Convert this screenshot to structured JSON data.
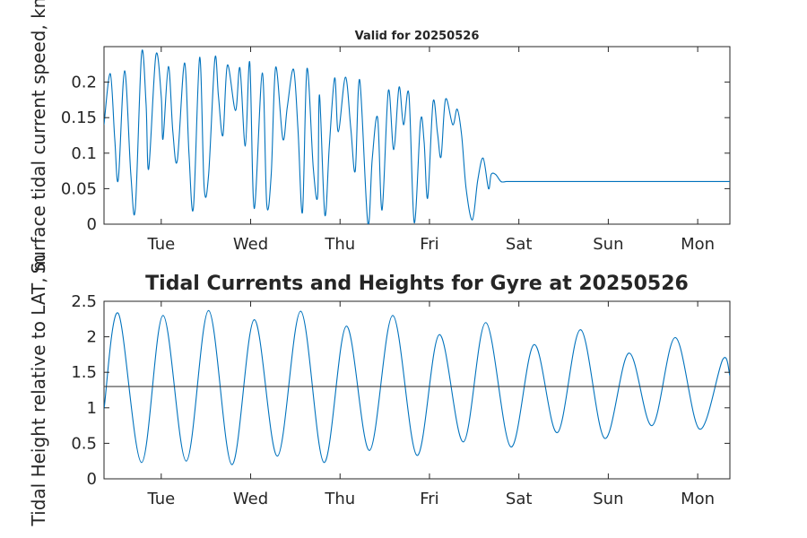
{
  "chart_data": [
    {
      "type": "line",
      "title": "Valid for 20250526",
      "ylabel": "Surface tidal current speed, kn",
      "xlabel": "",
      "xlim": [
        0,
        7
      ],
      "ylim": [
        0,
        0.25
      ],
      "yticks": [
        0,
        0.05,
        0.1,
        0.15,
        0.2
      ],
      "ytick_labels": [
        "0",
        "0.05",
        "0.1",
        "0.15",
        "0.2"
      ],
      "xticks": [
        0.64,
        1.64,
        2.64,
        3.64,
        4.64,
        5.64,
        6.64
      ],
      "xtick_labels": [
        "Tue",
        "Wed",
        "Thu",
        "Fri",
        "Sat",
        "Sun",
        "Mon"
      ],
      "line_color": "#0072BD",
      "series": [
        {
          "x": [
            0.0,
            0.07,
            0.12,
            0.16,
            0.23,
            0.3,
            0.35,
            0.42,
            0.47,
            0.5,
            0.58,
            0.64,
            0.66,
            0.72,
            0.77,
            0.82,
            0.9,
            0.95,
            1.0,
            1.07,
            1.12,
            1.17,
            1.24,
            1.28,
            1.33,
            1.38,
            1.47,
            1.52,
            1.58,
            1.63,
            1.68,
            1.77,
            1.82,
            1.87,
            1.92,
            2.0,
            2.05,
            2.12,
            2.17,
            2.22,
            2.27,
            2.34,
            2.39,
            2.41,
            2.47,
            2.52,
            2.58,
            2.62,
            2.7,
            2.76,
            2.81,
            2.86,
            2.95,
            3.0,
            3.06,
            3.11,
            3.18,
            3.24,
            3.3,
            3.35,
            3.41,
            3.47,
            3.54,
            3.58,
            3.62,
            3.68,
            3.73,
            3.77,
            3.82,
            3.9,
            3.95,
            4.0,
            4.05,
            4.12,
            4.18,
            4.24,
            4.3,
            4.33,
            4.38,
            4.44,
            4.5,
            4.57,
            4.63,
            4.68,
            4.74,
            4.82,
            4.87,
            4.9,
            5.0,
            5.05,
            5.12,
            5.18,
            5.27,
            5.32,
            5.38,
            5.43,
            5.5,
            5.56,
            5.61,
            5.67,
            5.73,
            5.8,
            5.86,
            5.92,
            5.97,
            6.02,
            6.08,
            6.15,
            6.2,
            6.26,
            6.32,
            6.38,
            6.43,
            6.48,
            6.55,
            6.62,
            6.7,
            6.76,
            6.83,
            6.89,
            6.94,
            7.0
          ],
          "y": [
            0.14,
            0.212,
            0.12,
            0.063,
            0.216,
            0.07,
            0.022,
            0.24,
            0.17,
            0.078,
            0.238,
            0.18,
            0.12,
            0.222,
            0.13,
            0.09,
            0.227,
            0.1,
            0.023,
            0.235,
            0.052,
            0.07,
            0.233,
            0.18,
            0.125,
            0.224,
            0.16,
            0.22,
            0.11,
            0.228,
            0.022,
            0.213,
            0.028,
            0.07,
            0.221,
            0.12,
            0.165,
            0.218,
            0.132,
            0.017,
            0.219,
            0.08,
            0.04,
            0.182,
            0.013,
            0.11,
            0.206,
            0.13,
            0.207,
            0.135,
            0.075,
            0.203,
            0.002,
            0.092,
            0.15,
            0.02,
            0.188,
            0.105,
            0.193,
            0.14,
            0.183,
            0.002,
            0.145,
            0.116,
            0.037,
            0.172,
            0.128,
            0.095,
            0.176,
            0.14,
            0.162,
            0.125,
            0.05,
            0.006,
            0.062,
            0.093,
            0.05,
            0.07,
            0.07,
            0.06,
            0.06,
            0.06,
            0.06,
            0.06,
            0.06,
            0.06,
            0.06,
            0.06,
            0.06,
            0.06,
            0.06,
            0.06,
            0.06,
            0.06,
            0.06,
            0.06,
            0.06,
            0.06,
            0.06,
            0.06,
            0.06,
            0.06,
            0.06,
            0.06,
            0.06,
            0.06,
            0.06,
            0.06,
            0.06,
            0.06,
            0.06,
            0.06,
            0.06,
            0.06,
            0.06,
            0.06,
            0.06,
            0.06,
            0.06,
            0.06,
            0.06,
            0.06
          ]
        }
      ]
    },
    {
      "type": "line",
      "title": "Tidal Currents and Heights for Gyre at 20250526",
      "ylabel": "Tidal Height relative to LAT, m",
      "xlabel": "",
      "xlim": [
        0,
        7
      ],
      "ylim": [
        0,
        2.5
      ],
      "yticks": [
        0,
        0.5,
        1,
        1.5,
        2,
        2.5
      ],
      "ytick_labels": [
        "0",
        "0.5",
        "1",
        "1.5",
        "2",
        "2.5"
      ],
      "xticks": [
        0.64,
        1.64,
        2.64,
        3.64,
        4.64,
        5.64,
        6.64
      ],
      "xtick_labels": [
        "Tue",
        "Wed",
        "Thu",
        "Fri",
        "Sat",
        "Sun",
        "Mon"
      ],
      "line_color": "#0072BD",
      "reference_line": {
        "y": 1.3,
        "color": "#404040"
      },
      "series": [
        {
          "x": [
            0.0,
            0.16,
            0.42,
            0.66,
            0.92,
            1.17,
            1.43,
            1.68,
            1.94,
            2.2,
            2.46,
            2.71,
            2.97,
            3.23,
            3.5,
            3.75,
            4.02,
            4.27,
            4.55,
            4.81,
            5.07,
            5.33,
            5.6,
            5.87,
            6.13,
            6.39,
            6.66,
            6.92,
            7.0
          ],
          "y": [
            0.98,
            2.33,
            0.23,
            2.3,
            0.25,
            2.37,
            0.2,
            2.24,
            0.32,
            2.36,
            0.23,
            2.15,
            0.4,
            2.3,
            0.33,
            2.03,
            0.52,
            2.2,
            0.45,
            1.89,
            0.65,
            2.1,
            0.57,
            1.77,
            0.75,
            1.99,
            0.7,
            1.68,
            1.45
          ]
        }
      ]
    }
  ]
}
